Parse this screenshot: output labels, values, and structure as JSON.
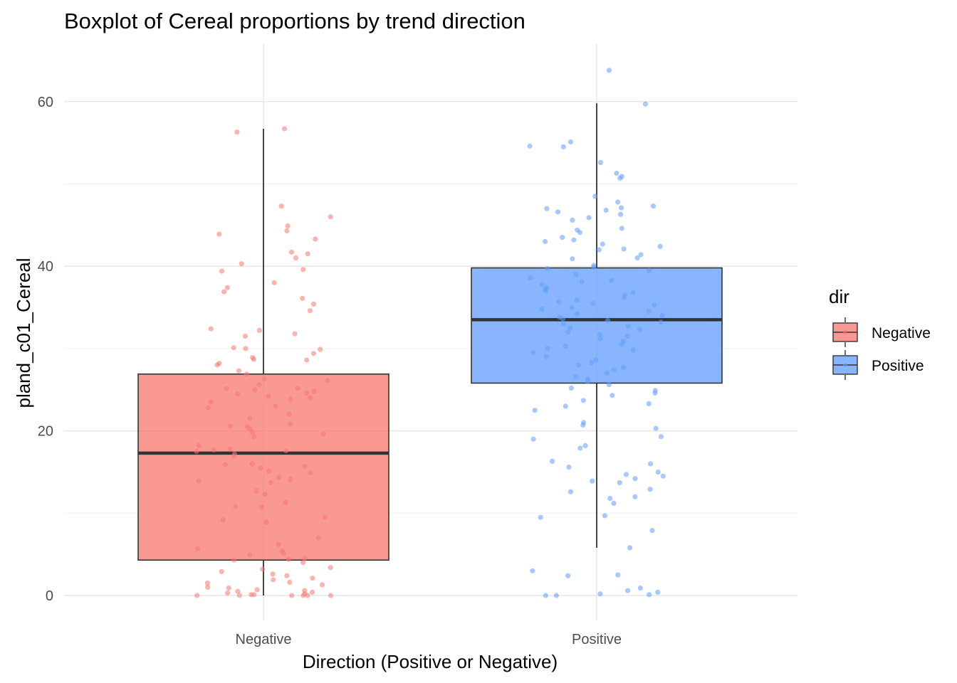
{
  "chart_data": {
    "type": "boxplot",
    "title": "Boxplot of Cereal proportions by trend direction",
    "xlabel": "Direction (Positive or Negative)",
    "ylabel": "pland_c01_Cereal",
    "categories": [
      "Negative",
      "Positive"
    ],
    "ylim": [
      -3,
      67
    ],
    "yticks": [
      0,
      20,
      40,
      60
    ],
    "grid": true,
    "legend": {
      "title": "dir",
      "position": "right",
      "entries": [
        {
          "label": "Negative",
          "color": "#F8766D"
        },
        {
          "label": "Positive",
          "color": "#619CFF"
        }
      ]
    },
    "boxes": [
      {
        "category": "Negative",
        "min": 0,
        "q1": 4.3,
        "median": 17.3,
        "q3": 26.9,
        "max": 56.7,
        "color": "#F8766D"
      },
      {
        "category": "Positive",
        "min": 5.8,
        "q1": 25.8,
        "median": 33.5,
        "q3": 39.8,
        "max": 59.8,
        "color": "#619CFF"
      }
    ],
    "points": [
      {
        "category": "Negative",
        "values": [
          56.7,
          56.3,
          47.3,
          46.0,
          44.9,
          44.3,
          43.9,
          43.3,
          41.7,
          41.5,
          41.0,
          40.3,
          39.6,
          39.4,
          38.0,
          37.4,
          36.9,
          36.1,
          35.4,
          34.6,
          32.4,
          32.2,
          31.8,
          31.5,
          30.1,
          30.0,
          29.9,
          29.4,
          28.9,
          28.7,
          28.6,
          28.2,
          28.0,
          27.3,
          26.9,
          26.3,
          26.1,
          25.6,
          25.2,
          25.1,
          25.0,
          24.8,
          24.6,
          24.5,
          24.2,
          24.0,
          23.8,
          23.5,
          23.0,
          22.8,
          22.0,
          21.5,
          20.8,
          20.6,
          20.5,
          20.2,
          19.8,
          19.6,
          19.3,
          18.2,
          17.8,
          17.7,
          17.6,
          17.5,
          17.2,
          16.9,
          16.0,
          15.9,
          15.7,
          15.5,
          15.1,
          14.9,
          14.3,
          14.1,
          13.9,
          13.7,
          12.7,
          12.3,
          11.3,
          10.8,
          10.7,
          9.5,
          9.2,
          8.9,
          7.0,
          6.2,
          5.7,
          5.4,
          5.1,
          4.9,
          4.5,
          4.4,
          4.3,
          4.0,
          3.4,
          3.2,
          2.9,
          2.6,
          2.4,
          2.1,
          1.9,
          1.6,
          1.5,
          1.3,
          1.0,
          0.9,
          0.7,
          0.6,
          0.5,
          0.4,
          0.3,
          0.2,
          0.1,
          0.1,
          0.0,
          0.0,
          0.0,
          0.0,
          0.0,
          0.0
        ]
      },
      {
        "category": "Positive",
        "values": [
          63.8,
          59.7,
          55.1,
          54.6,
          54.5,
          52.6,
          51.3,
          50.9,
          50.7,
          48.5,
          47.8,
          47.3,
          47.1,
          47.0,
          46.8,
          46.6,
          46.3,
          45.9,
          45.6,
          44.6,
          44.4,
          44.1,
          43.5,
          43.2,
          43.0,
          42.7,
          42.4,
          42.1,
          42.0,
          41.4,
          41.0,
          40.9,
          40.1,
          39.9,
          39.7,
          39.5,
          39.0,
          38.6,
          38.3,
          38.1,
          37.8,
          37.4,
          37.2,
          37.0,
          36.8,
          36.5,
          36.2,
          35.9,
          35.7,
          35.5,
          35.3,
          35.0,
          34.8,
          34.5,
          34.2,
          34.0,
          33.8,
          33.6,
          33.4,
          33.2,
          33.0,
          32.7,
          32.5,
          32.3,
          32.0,
          31.7,
          31.5,
          31.2,
          30.9,
          30.5,
          30.3,
          30.0,
          29.8,
          29.5,
          29.0,
          28.6,
          28.3,
          28.0,
          27.7,
          27.4,
          27.0,
          26.6,
          26.3,
          26.0,
          25.6,
          25.2,
          24.9,
          24.6,
          24.3,
          23.7,
          23.3,
          23.0,
          22.5,
          21.0,
          20.7,
          20.3,
          19.3,
          19.0,
          18.2,
          17.9,
          16.3,
          16.0,
          15.6,
          15.0,
          14.7,
          14.5,
          14.2,
          13.9,
          13.7,
          12.9,
          12.6,
          12.0,
          11.8,
          11.2,
          9.7,
          9.5,
          7.9,
          5.8,
          3.0,
          2.5,
          2.4,
          0.9,
          0.6,
          0.4,
          0.2,
          0.1,
          0.0,
          0.0
        ]
      }
    ]
  }
}
